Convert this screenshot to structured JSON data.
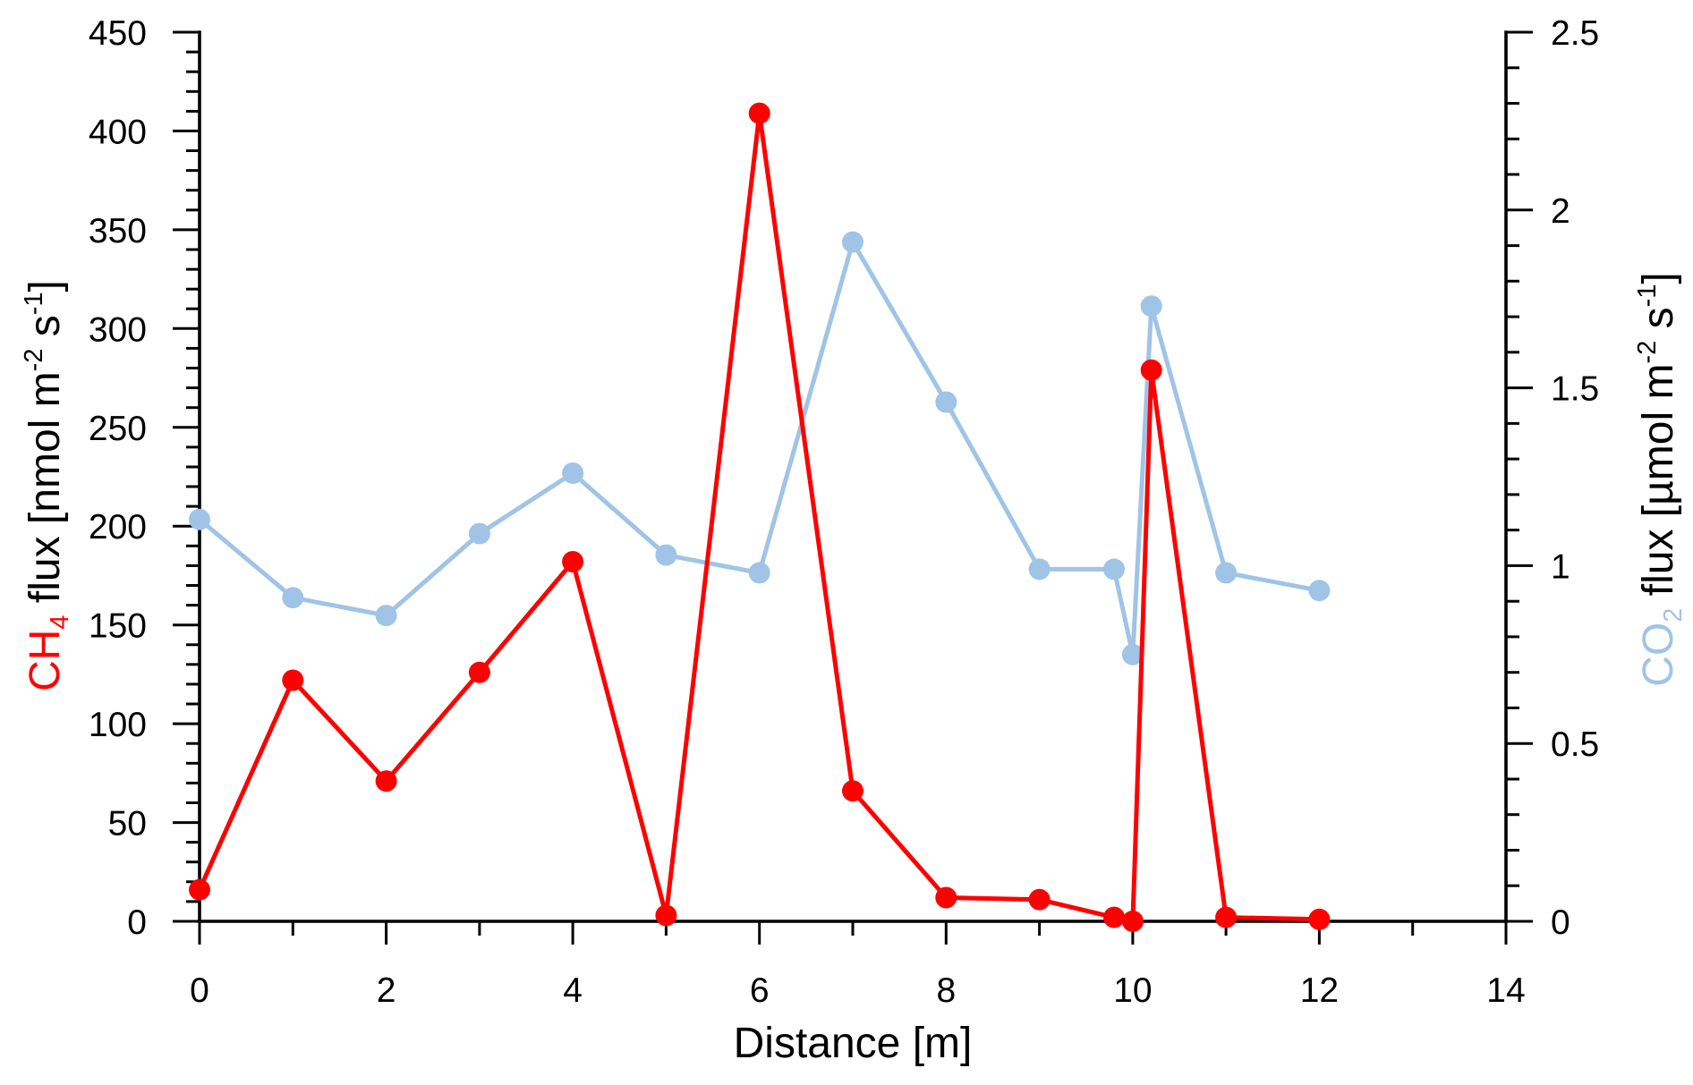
{
  "chart_data": {
    "type": "line",
    "xlabel": "Distance [m]",
    "ylabel_left": [
      "CH",
      "4",
      " flux [nmol m",
      "-2",
      " s",
      "-1",
      "]"
    ],
    "ylabel_right": [
      "CO",
      "2",
      " flux [µmol m",
      "-2",
      " s",
      "-1",
      "]"
    ],
    "xlim": [
      0,
      14
    ],
    "xticks": [
      0,
      2,
      4,
      6,
      8,
      10,
      12,
      14
    ],
    "x_minor_step": 1,
    "ylim_left": [
      0,
      450
    ],
    "yticks_left": [
      0,
      50,
      100,
      150,
      200,
      250,
      300,
      350,
      400,
      450
    ],
    "y_left_minor_step": 10,
    "ylim_right": [
      0,
      2.5
    ],
    "yticks_right": [
      0,
      0.5,
      1,
      1.5,
      2,
      2.5
    ],
    "y_right_minor_step": 0.1,
    "grid": false,
    "axis_color": "#000000",
    "x": [
      0,
      1,
      2,
      3,
      4,
      5,
      6,
      7,
      8,
      9,
      9.8,
      10,
      10.2,
      11,
      12
    ],
    "series": [
      {
        "axis": "left",
        "color": "#ff0000",
        "values": [
          16,
          122,
          71,
          126,
          182,
          3,
          409,
          66,
          12,
          11,
          2,
          0,
          279,
          2,
          1
        ]
      },
      {
        "axis": "right",
        "color": "#9fc4e6",
        "values": [
          1.13,
          0.91,
          0.86,
          1.09,
          1.26,
          1.03,
          0.98,
          1.91,
          1.46,
          0.99,
          0.99,
          0.75,
          1.73,
          0.98,
          0.93
        ]
      }
    ]
  }
}
